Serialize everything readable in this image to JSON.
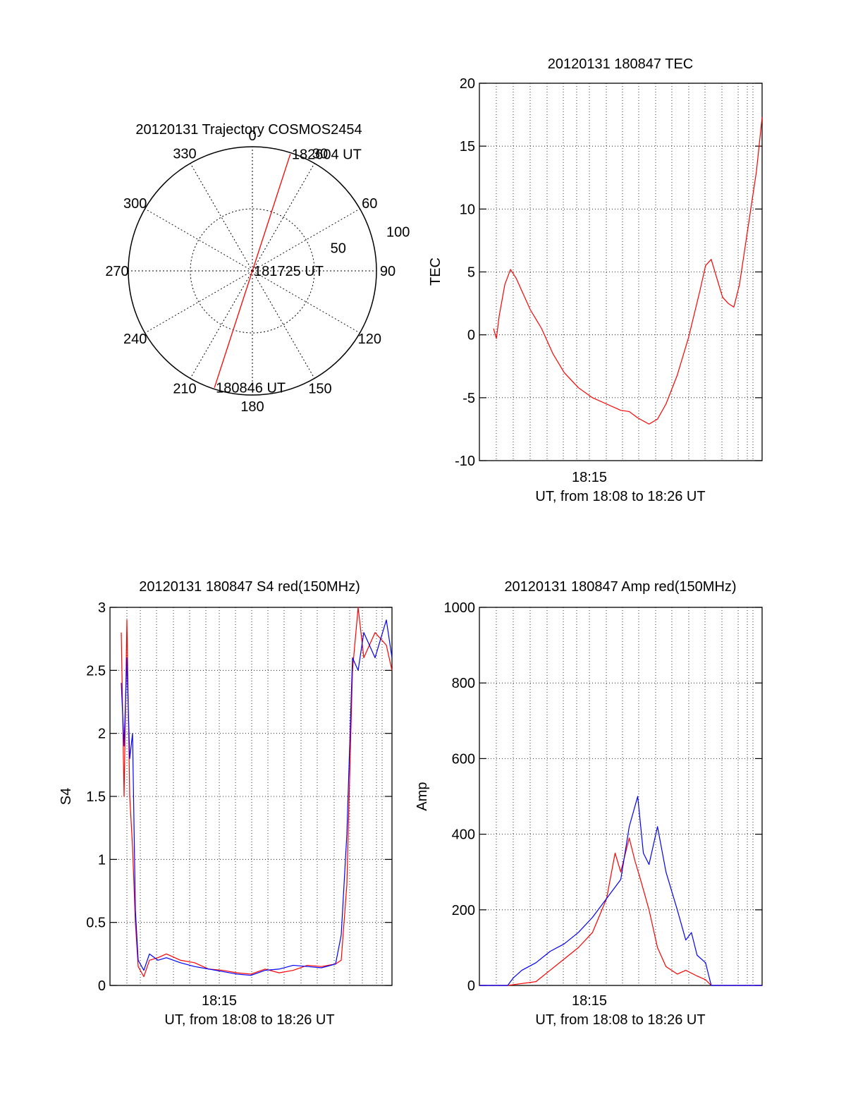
{
  "colors": {
    "red": "#ff0000",
    "blue": "#0000ff",
    "axis": "#000000"
  },
  "chart_data": [
    {
      "id": "polar",
      "type": "scatter",
      "title": "20120131 Trajectory COSMOS2454",
      "azimuth_labels": [
        "0",
        "30",
        "60",
        "90",
        "120",
        "150",
        "180",
        "210",
        "240",
        "270",
        "300",
        "330"
      ],
      "ring_labels": [
        "50",
        "100"
      ],
      "rlim": [
        0,
        100
      ],
      "grid": true,
      "series": [
        {
          "color": "red",
          "azimuth": [
            18,
            198
          ],
          "zenith": [
            99,
            99
          ]
        }
      ],
      "annotations": [
        {
          "text": "182604 UT",
          "azimuth": 18,
          "zenith": 99
        },
        {
          "text": "181725 UT",
          "azimuth": 0,
          "zenith": 0
        },
        {
          "text": "180846 UT",
          "azimuth": 198,
          "zenith": 99
        }
      ]
    },
    {
      "id": "tec",
      "type": "line",
      "title": "20120131 180847 TEC",
      "ylabel": "TEC",
      "xlabel": "UT, from 18:08 to 18:26 UT",
      "xtick_labels": [
        "18:15"
      ],
      "ylim": [
        -10,
        20
      ],
      "yticks": [
        "-10",
        "-5",
        "0",
        "5",
        "10",
        "15",
        "20"
      ],
      "grid": true,
      "series": [
        {
          "color": "red",
          "x": [
            0.05,
            0.06,
            0.07,
            0.09,
            0.11,
            0.13,
            0.15,
            0.18,
            0.22,
            0.26,
            0.3,
            0.35,
            0.4,
            0.45,
            0.5,
            0.53,
            0.56,
            0.6,
            0.63,
            0.66,
            0.7,
            0.74,
            0.78,
            0.8,
            0.82,
            0.84,
            0.86,
            0.88,
            0.9,
            0.92,
            0.94,
            0.96,
            0.98,
            1.0
          ],
          "y": [
            0.5,
            -0.3,
            1.5,
            4.0,
            5.2,
            4.5,
            3.5,
            2.0,
            0.5,
            -1.5,
            -3.0,
            -4.2,
            -5.0,
            -5.5,
            -6.0,
            -6.1,
            -6.6,
            -7.1,
            -6.7,
            -5.5,
            -3.2,
            -0.2,
            3.5,
            5.5,
            6.0,
            4.5,
            3.0,
            2.5,
            2.2,
            4.0,
            7.0,
            10.0,
            13.0,
            17.3
          ]
        }
      ]
    },
    {
      "id": "s4",
      "type": "line",
      "title": "20120131 180847 S4 red(150MHz)",
      "ylabel": "S4",
      "xlabel": "UT, from 18:08 to 18:26 UT",
      "xtick_labels": [
        "18:15"
      ],
      "ylim": [
        0,
        3
      ],
      "yticks": [
        "0",
        "0.5",
        "1",
        "1.5",
        "2",
        "2.5",
        "3"
      ],
      "grid": true,
      "series": [
        {
          "color": "red",
          "x": [
            0.04,
            0.05,
            0.06,
            0.07,
            0.08,
            0.09,
            0.1,
            0.12,
            0.14,
            0.17,
            0.2,
            0.25,
            0.3,
            0.35,
            0.4,
            0.45,
            0.5,
            0.55,
            0.6,
            0.65,
            0.7,
            0.75,
            0.8,
            0.82,
            0.84,
            0.86,
            0.88,
            0.9,
            0.94,
            0.98,
            1.0
          ],
          "y": [
            2.8,
            1.5,
            2.9,
            1.5,
            1.1,
            0.5,
            0.15,
            0.07,
            0.2,
            0.22,
            0.25,
            0.2,
            0.18,
            0.13,
            0.12,
            0.1,
            0.09,
            0.13,
            0.1,
            0.12,
            0.16,
            0.15,
            0.17,
            0.2,
            0.8,
            2.5,
            3.0,
            2.6,
            2.8,
            2.7,
            2.5
          ]
        },
        {
          "color": "blue",
          "x": [
            0.04,
            0.05,
            0.06,
            0.07,
            0.08,
            0.09,
            0.1,
            0.12,
            0.14,
            0.17,
            0.2,
            0.25,
            0.3,
            0.35,
            0.4,
            0.45,
            0.5,
            0.55,
            0.6,
            0.65,
            0.7,
            0.75,
            0.8,
            0.82,
            0.84,
            0.86,
            0.88,
            0.9,
            0.94,
            0.98,
            1.0
          ],
          "y": [
            2.4,
            1.9,
            2.6,
            1.8,
            2.0,
            0.6,
            0.2,
            0.12,
            0.25,
            0.2,
            0.22,
            0.18,
            0.15,
            0.13,
            0.11,
            0.09,
            0.08,
            0.12,
            0.13,
            0.16,
            0.15,
            0.14,
            0.17,
            0.4,
            1.2,
            2.6,
            2.5,
            2.8,
            2.6,
            2.9,
            2.6
          ]
        }
      ]
    },
    {
      "id": "amp",
      "type": "line",
      "title": "20120131 180847 Amp red(150MHz)",
      "ylabel": "Amp",
      "xlabel": "UT, from 18:08 to 18:26 UT",
      "xtick_labels": [
        "18:15"
      ],
      "ylim": [
        0,
        1000
      ],
      "yticks": [
        "0",
        "200",
        "400",
        "600",
        "800",
        "1000"
      ],
      "grid": true,
      "series": [
        {
          "color": "red",
          "x": [
            0.0,
            0.1,
            0.15,
            0.2,
            0.25,
            0.3,
            0.35,
            0.4,
            0.45,
            0.48,
            0.5,
            0.53,
            0.55,
            0.57,
            0.6,
            0.63,
            0.66,
            0.7,
            0.73,
            0.77,
            0.8,
            0.82,
            0.85,
            1.0
          ],
          "y": [
            0,
            0,
            5,
            10,
            40,
            70,
            100,
            140,
            230,
            350,
            300,
            390,
            330,
            280,
            200,
            100,
            50,
            30,
            40,
            25,
            15,
            0,
            0,
            0
          ]
        },
        {
          "color": "blue",
          "x": [
            0.0,
            0.1,
            0.12,
            0.15,
            0.2,
            0.25,
            0.3,
            0.35,
            0.4,
            0.45,
            0.5,
            0.53,
            0.56,
            0.58,
            0.6,
            0.63,
            0.66,
            0.7,
            0.73,
            0.75,
            0.77,
            0.8,
            0.82,
            0.85,
            1.0
          ],
          "y": [
            0,
            0,
            20,
            40,
            60,
            90,
            110,
            140,
            180,
            230,
            280,
            420,
            500,
            350,
            320,
            420,
            300,
            200,
            120,
            140,
            80,
            60,
            0,
            0,
            0
          ]
        }
      ]
    }
  ]
}
